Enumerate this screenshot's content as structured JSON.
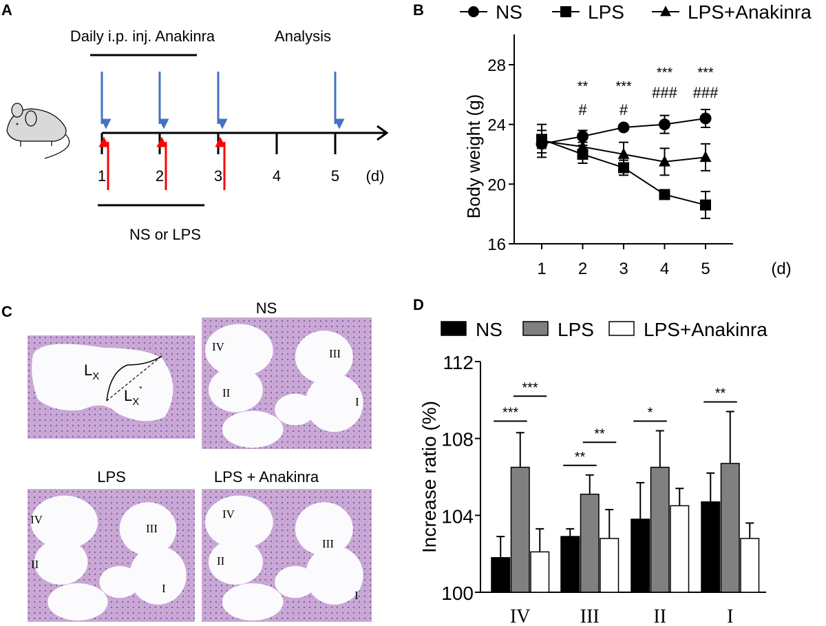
{
  "panel_labels": {
    "a": "A",
    "b": "B",
    "c": "C",
    "d": "D"
  },
  "panel_a": {
    "treatment_label": "Daily i.p. inj. Anakinra",
    "analysis_label": "Analysis",
    "challenge_label": "NS or LPS",
    "days": [
      "1",
      "2",
      "3",
      "4",
      "5"
    ],
    "unit_label": "(d)",
    "colors": {
      "treatment_arrow": "#4472c4",
      "challenge_arrow": "#ff0000"
    }
  },
  "panel_c": {
    "titles": {
      "ns": "NS",
      "lps": "LPS",
      "lps_anakinra": "LPS + Anakinra"
    },
    "measure_labels": {
      "lx": "L",
      "lx_sub": "X",
      "lx_star_sub": "X",
      "star": "*"
    },
    "turn_labels": {
      "iv": "IV",
      "iii": "III",
      "ii": "II",
      "i": "I"
    }
  },
  "chart_data": [
    {
      "type": "line",
      "panel": "B",
      "x": [
        1,
        2,
        3,
        4,
        5
      ],
      "x_tick_labels": [
        "1",
        "2",
        "3",
        "4",
        "5"
      ],
      "xunit": "(d)",
      "ylabel": "Body weight (g)",
      "ylim": [
        16,
        30
      ],
      "yticks": [
        16,
        20,
        24,
        28
      ],
      "legend_position": "top",
      "series": [
        {
          "name": "NS",
          "marker": "circle",
          "values": [
            22.7,
            23.2,
            23.8,
            24.0,
            24.4
          ],
          "errors": [
            0.6,
            0.4,
            0.2,
            0.6,
            0.6
          ]
        },
        {
          "name": "LPS",
          "marker": "square",
          "values": [
            23.0,
            22.0,
            21.1,
            19.3,
            18.6
          ],
          "errors": [
            0.6,
            0.6,
            0.5,
            0.2,
            0.9
          ]
        },
        {
          "name": "LPS+Anakinra",
          "marker": "triangle",
          "values": [
            22.9,
            22.5,
            22.0,
            21.5,
            21.8
          ],
          "errors": [
            1.1,
            0.5,
            0.8,
            0.9,
            0.9
          ]
        }
      ],
      "annotations": [
        {
          "x": 2,
          "stars": "**",
          "hash": "#"
        },
        {
          "x": 3,
          "stars": "***",
          "hash": "#"
        },
        {
          "x": 4,
          "stars": "***",
          "hash": "###"
        },
        {
          "x": 5,
          "stars": "***",
          "hash": "###"
        }
      ]
    },
    {
      "type": "bar",
      "panel": "D",
      "categories": [
        "IV",
        "III",
        "II",
        "I"
      ],
      "ylabel": "Increase ratio (%)",
      "ylim": [
        100,
        112
      ],
      "yticks": [
        100,
        104,
        108,
        112
      ],
      "legend_position": "top",
      "series": [
        {
          "name": "NS",
          "color": "#000000",
          "values": [
            101.8,
            102.9,
            103.8,
            104.7
          ],
          "error_tops": [
            102.9,
            103.3,
            105.7,
            106.2
          ]
        },
        {
          "name": "LPS",
          "color": "#808080",
          "values": [
            106.5,
            105.1,
            106.5,
            106.7
          ],
          "error_tops": [
            108.3,
            106.1,
            108.4,
            109.4
          ]
        },
        {
          "name": "LPS+Anakinra",
          "color": "#ffffff",
          "values": [
            102.1,
            102.8,
            104.5,
            102.8
          ],
          "error_tops": [
            103.3,
            104.3,
            105.4,
            103.6
          ]
        }
      ],
      "significance": [
        {
          "category": 0,
          "pair": [
            0,
            1
          ],
          "label": "***",
          "level": 108.9
        },
        {
          "category": 0,
          "pair": [
            1,
            2
          ],
          "label": "***",
          "level": 110.2
        },
        {
          "category": 1,
          "pair": [
            0,
            1
          ],
          "label": "**",
          "level": 106.6
        },
        {
          "category": 1,
          "pair": [
            1,
            2
          ],
          "label": "**",
          "level": 107.8
        },
        {
          "category": 2,
          "pair": [
            0,
            1
          ],
          "label": "*",
          "level": 108.9
        },
        {
          "category": 3,
          "pair": [
            0,
            1
          ],
          "label": "**",
          "level": 109.9
        }
      ]
    }
  ]
}
